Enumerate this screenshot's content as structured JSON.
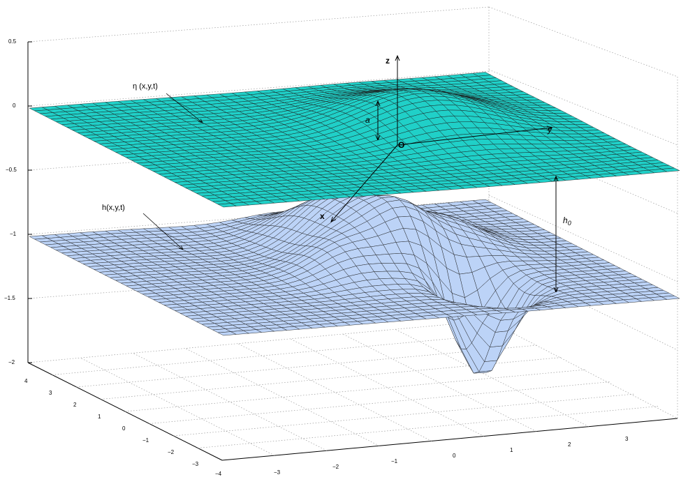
{
  "labels": {
    "eta": "η (x,y,t)",
    "h": "h(x,y,t)",
    "z": "z",
    "y": "y",
    "x": "x",
    "a": "a",
    "o": "O",
    "h0": "h",
    "h0_sub": "0"
  },
  "z_ticks": [
    "0.5",
    "0",
    "−0.5",
    "−1",
    "−1.5",
    "−2"
  ],
  "left_ticks": [
    "4",
    "3",
    "2",
    "1",
    "0",
    "−1",
    "−2",
    "−3",
    "−4"
  ],
  "bottom_ticks": [
    "−3",
    "−2",
    "−1",
    "0",
    "1",
    "2",
    "3"
  ],
  "colors": {
    "upper_surface": "#20d0c8",
    "lower_surface": "#bcd3f7",
    "mesh_line": "#1a1a1a"
  }
}
